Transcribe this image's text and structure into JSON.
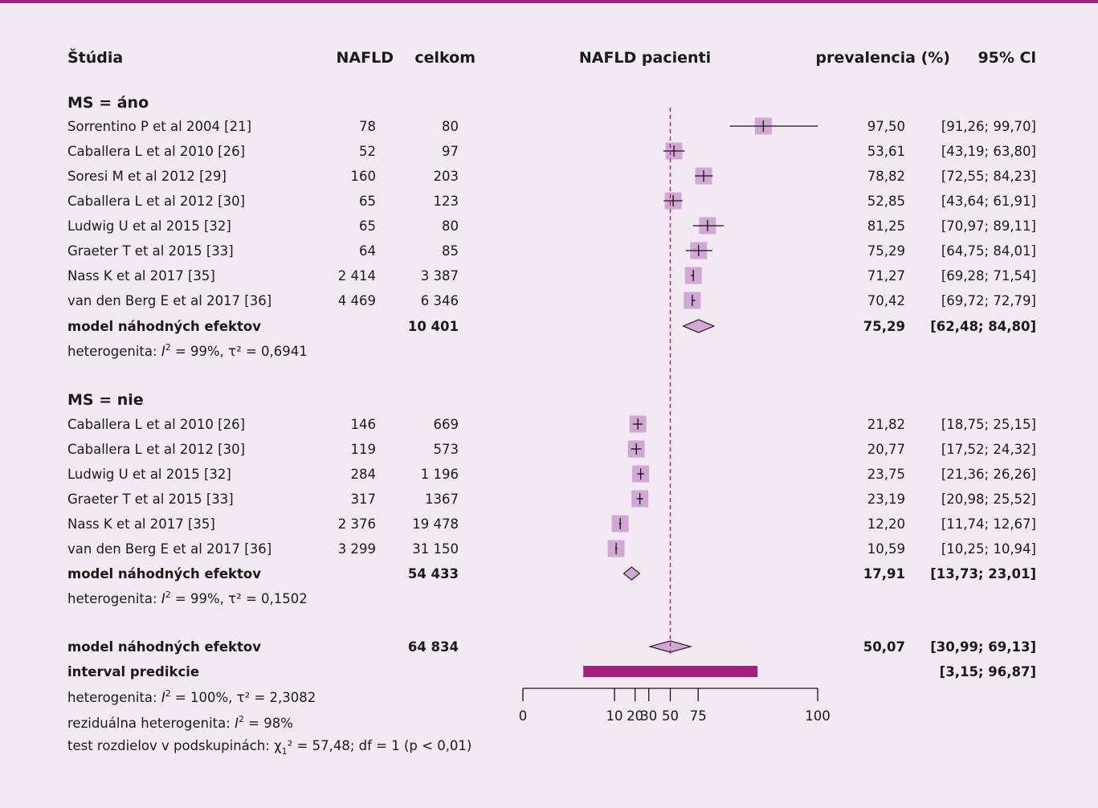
{
  "columns": {
    "study": "Štúdia",
    "events": "NAFLD",
    "total": "celkom",
    "plot": "NAFLD pacienti",
    "prev": "prevalencia (%)",
    "ci": "95% Cl"
  },
  "groups": [
    {
      "title": "MS = áno",
      "studies": [
        {
          "name": "Sorrentino P et al 2004 [21]",
          "events": "78",
          "total": "80",
          "prev": "97,50",
          "ci": "[91,26; 99,70]",
          "est": 97.5,
          "lo": 91.26,
          "hi": 99.7
        },
        {
          "name": "Caballera L et al 2010 [26]",
          "events": "52",
          "total": "97",
          "prev": "53,61",
          "ci": "[43,19; 63,80]",
          "est": 53.61,
          "lo": 43.19,
          "hi": 63.8
        },
        {
          "name": "Soresi M et al 2012 [29]",
          "events": "160",
          "total": "203",
          "prev": "78,82",
          "ci": "[72,55; 84,23]",
          "est": 78.82,
          "lo": 72.55,
          "hi": 84.23
        },
        {
          "name": "Caballera L et al 2012 [30]",
          "events": "65",
          "total": "123",
          "prev": "52,85",
          "ci": "[43,64; 61,91]",
          "est": 52.85,
          "lo": 43.64,
          "hi": 61.91
        },
        {
          "name": "Ludwig U et al 2015 [32]",
          "events": "65",
          "total": "80",
          "prev": "81,25",
          "ci": "[70,97; 89,11]",
          "est": 81.25,
          "lo": 70.97,
          "hi": 89.11
        },
        {
          "name": "Graeter T et al 2015 [33]",
          "events": "64",
          "total": "85",
          "prev": "75,29",
          "ci": "[64,75; 84,01]",
          "est": 75.29,
          "lo": 64.75,
          "hi": 84.01
        },
        {
          "name": "Nass K et al 2017 [35]",
          "events": "2 414",
          "total": "3 387",
          "prev": "71,27",
          "ci": "[69,28; 71,54]",
          "est": 71.27,
          "lo": 69.28,
          "hi": 71.54
        },
        {
          "name": "van den Berg E et al 2017 [36]",
          "events": "4 469",
          "total": "6 346",
          "prev": "70,42",
          "ci": "[69,72; 72,79]",
          "est": 70.42,
          "lo": 69.72,
          "hi": 72.79
        }
      ],
      "summary": {
        "label": "model náhodných efektov",
        "total": "10 401",
        "prev": "75,29",
        "ci": "[62,48; 84,80]",
        "est": 75.29,
        "lo": 62.48,
        "hi": 84.8
      },
      "het_prefix": "heterogenita: ",
      "het_i2": "I",
      "het_rest": " = 99%, τ² = 0,6941"
    },
    {
      "title": "MS = nie",
      "studies": [
        {
          "name": "Caballera L et al 2010 [26]",
          "events": "146",
          "total": "669",
          "prev": "21,82",
          "ci": "[18,75; 25,15]",
          "est": 21.82,
          "lo": 18.75,
          "hi": 25.15
        },
        {
          "name": "Caballera L et al 2012 [30]",
          "events": "119",
          "total": "573",
          "prev": "20,77",
          "ci": "[17,52; 24,32]",
          "est": 20.77,
          "lo": 17.52,
          "hi": 24.32
        },
        {
          "name": "Ludwig U et al 2015 [32]",
          "events": "284",
          "total": "1 196",
          "prev": "23,75",
          "ci": "[21,36; 26,26]",
          "est": 23.75,
          "lo": 21.36,
          "hi": 26.26
        },
        {
          "name": "Graeter T et al 2015 [33]",
          "events": "317",
          "total": "1367",
          "prev": "23,19",
          "ci": "[20,98; 25,52]",
          "est": 23.19,
          "lo": 20.98,
          "hi": 25.52
        },
        {
          "name": "Nass K et al 2017 [35]",
          "events": "2 376",
          "total": "19 478",
          "prev": "12,20",
          "ci": "[11,74; 12,67]",
          "est": 12.2,
          "lo": 11.74,
          "hi": 12.67
        },
        {
          "name": "van den Berg E et al 2017 [36]",
          "events": "3 299",
          "total": "31 150",
          "prev": "10,59",
          "ci": "[10,25; 10,94]",
          "est": 10.59,
          "lo": 10.25,
          "hi": 10.94
        }
      ],
      "summary": {
        "label": "model náhodných efektov",
        "total": "54 433",
        "prev": "17,91",
        "ci": "[13,73; 23,01]",
        "est": 17.91,
        "lo": 13.73,
        "hi": 23.01
      },
      "het_prefix": "heterogenita: ",
      "het_i2": "I",
      "het_rest": " = 99%, τ² = 0,1502"
    }
  ],
  "overall": {
    "label": "model náhodných efektov",
    "total": "64 834",
    "prev": "50,07",
    "ci": "[30,99; 69,13]",
    "est": 50.07,
    "lo": 30.99,
    "hi": 69.13,
    "pred_label": "interval predikcie",
    "pred_ci": "[3,15; 96,87]",
    "pred_lo": 3.15,
    "pred_hi": 96.87,
    "het_prefix": "heterogenita: ",
    "het_i2": "I",
    "het_rest": " = 100%, τ² = 2,3082",
    "resid_prefix": "reziduálna heterogenita: ",
    "resid_i2": "I",
    "resid_rest": " = 98%",
    "test_prefix": "test rozdielov v podskupinách: χ",
    "test_sub": "1",
    "test_rest": "² = 57,48; df = 1 (p < 0,01)"
  },
  "chart_data": {
    "type": "forest",
    "xlabel": "",
    "axis_ticks": [
      0,
      10,
      20,
      30,
      50,
      75,
      100
    ],
    "axis_tick_labels": [
      "0",
      "10",
      "20",
      "30",
      "50",
      "75",
      "100"
    ],
    "axis_scale": "logit",
    "reference_line": 50,
    "colors": {
      "accent": "#a3207f",
      "square": "#d1a8d4",
      "diamond": "#d1a8d4"
    }
  }
}
